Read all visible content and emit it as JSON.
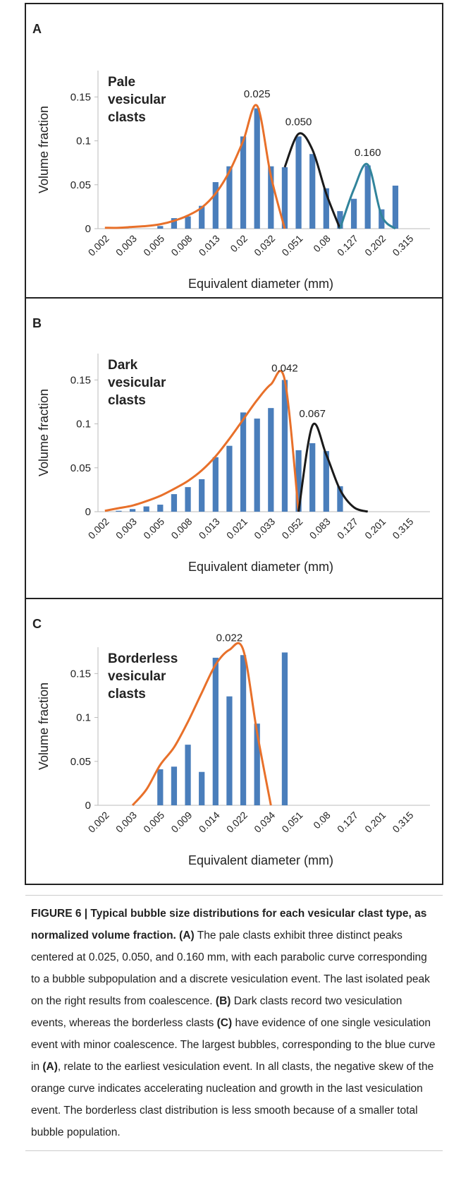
{
  "chart_data": [
    {
      "type": "bar",
      "panel": "A",
      "label_lines": [
        "Pale",
        "vesicular",
        "clasts"
      ],
      "x_label": "Equivalent diameter (mm)",
      "y_label": "Volume fraction",
      "categories": [
        "0.002",
        null,
        "0.003",
        null,
        "0.005",
        null,
        "0.008",
        null,
        "0.013",
        null,
        "0.02",
        null,
        "0.032",
        null,
        "0.051",
        null,
        "0.08",
        null,
        "0.127",
        null,
        "0.202",
        null,
        "0.315",
        null
      ],
      "ylim": [
        0,
        0.18
      ],
      "yticks": [
        0,
        0.05,
        0.1,
        0.15
      ],
      "series": [
        {
          "type": "bar",
          "color": "#4a7ebb",
          "values": [
            0,
            0,
            0,
            0,
            0.003,
            0.012,
            0.014,
            0.026,
            0.053,
            0.071,
            0.105,
            0.137,
            0.071,
            0.07,
            0.105,
            0.085,
            0.046,
            0.02,
            0.034,
            0.072,
            0.022,
            0.049,
            0,
            0
          ]
        },
        {
          "type": "line",
          "color": "#e8702a",
          "peak_label": "0.025",
          "values": [
            0.001,
            0.001,
            0.002,
            0.003,
            0.005,
            0.009,
            0.015,
            0.024,
            0.04,
            0.065,
            0.1,
            0.14,
            0.06,
            0,
            null,
            null,
            null,
            null,
            null,
            null,
            null,
            null,
            null,
            null
          ]
        },
        {
          "type": "line",
          "color": "#1a1a1a",
          "peak_label": "0.050",
          "values": [
            null,
            null,
            null,
            null,
            null,
            null,
            null,
            null,
            null,
            null,
            null,
            null,
            null,
            0.07,
            0.108,
            0.09,
            0.04,
            0,
            null,
            null,
            null,
            null,
            null,
            null
          ]
        },
        {
          "type": "line",
          "color": "#31849b",
          "peak_label": "0.160",
          "values": [
            null,
            null,
            null,
            null,
            null,
            null,
            null,
            null,
            null,
            null,
            null,
            null,
            null,
            null,
            null,
            null,
            null,
            0,
            0.045,
            0.073,
            0.015,
            0,
            null,
            null
          ]
        }
      ]
    },
    {
      "type": "bar",
      "panel": "B",
      "label_lines": [
        "Dark",
        "vesicular",
        "clasts"
      ],
      "x_label": "Equivalent diameter (mm)",
      "y_label": "Volume fraction",
      "categories": [
        "0.002",
        null,
        "0.003",
        null,
        "0.005",
        null,
        "0.008",
        null,
        "0.013",
        null,
        "0.021",
        null,
        "0.033",
        null,
        "0.052",
        null,
        "0.083",
        null,
        "0.127",
        null,
        "0.201",
        null,
        "0.315",
        null
      ],
      "ylim": [
        0,
        0.18
      ],
      "yticks": [
        0,
        0.05,
        0.1,
        0.15
      ],
      "series": [
        {
          "type": "bar",
          "color": "#4a7ebb",
          "values": [
            0,
            0.001,
            0.003,
            0.006,
            0.008,
            0.02,
            0.028,
            0.037,
            0.062,
            0.075,
            0.113,
            0.106,
            0.118,
            0.15,
            0.07,
            0.078,
            0.069,
            0.029,
            0,
            0,
            0,
            0,
            0,
            0
          ]
        },
        {
          "type": "line",
          "color": "#e8702a",
          "peak_label": "0.042",
          "values": [
            0.001,
            0.004,
            0.007,
            0.012,
            0.018,
            0.026,
            0.035,
            0.047,
            0.063,
            0.083,
            0.105,
            0.127,
            0.145,
            0.15,
            0,
            null,
            null,
            null,
            null,
            null,
            null,
            null,
            null,
            null
          ]
        },
        {
          "type": "line",
          "color": "#1a1a1a",
          "peak_label": "0.067",
          "values": [
            null,
            null,
            null,
            null,
            null,
            null,
            null,
            null,
            null,
            null,
            null,
            null,
            null,
            null,
            0,
            0.098,
            0.065,
            0.025,
            0.005,
            0,
            null,
            null,
            null,
            null
          ]
        }
      ]
    },
    {
      "type": "bar",
      "panel": "C",
      "label_lines": [
        "Borderless",
        "vesicular",
        "clasts"
      ],
      "x_label": "Equivalent diameter (mm)",
      "y_label": "Volume fraction",
      "categories": [
        "0.002",
        null,
        "0.003",
        null,
        "0.005",
        null,
        "0.009",
        null,
        "0.014",
        null,
        "0.022",
        null,
        "0.034",
        null,
        "0.051",
        null,
        "0.08",
        null,
        "0.127",
        null,
        "0.201",
        null,
        "0.315",
        null
      ],
      "ylim": [
        0,
        0.18
      ],
      "yticks": [
        0,
        0.05,
        0.1,
        0.15
      ],
      "series": [
        {
          "type": "bar",
          "color": "#4a7ebb",
          "values": [
            0,
            0,
            0,
            0,
            0.041,
            0.044,
            0.069,
            0.038,
            0.168,
            0.124,
            0.171,
            0.093,
            0,
            0.174,
            0,
            0,
            0,
            0,
            0,
            0,
            0,
            0,
            0,
            0
          ]
        },
        {
          "type": "line",
          "color": "#e8702a",
          "peak_label": "0.022",
          "values": [
            null,
            null,
            0,
            0.018,
            0.046,
            0.066,
            0.095,
            0.128,
            0.16,
            0.177,
            0.177,
            0.083,
            0,
            null,
            null,
            null,
            null,
            null,
            null,
            null,
            null,
            null,
            null,
            null
          ]
        }
      ]
    }
  ],
  "caption": [
    {
      "text": "FIGURE 6 | Typical bubble size distributions for each vesicular clast type, as normalized volume fraction.",
      "bold": true
    },
    {
      "text": " "
    },
    {
      "text": "(A)",
      "bold": true
    },
    {
      "text": " The pale clasts exhibit three distinct peaks centered at 0.025, 0.050, and 0.160 mm, with each parabolic curve corresponding to a bubble subpopulation and a discrete vesiculation event. The last isolated peak on the right results from coalescence. "
    },
    {
      "text": "(B)",
      "bold": true
    },
    {
      "text": " Dark clasts record two vesiculation events, whereas the borderless clasts "
    },
    {
      "text": "(C)",
      "bold": true
    },
    {
      "text": " have evidence of one single vesiculation event with minor coalescence. The largest bubbles, corresponding to the blue curve in "
    },
    {
      "text": "(A)",
      "bold": true
    },
    {
      "text": ", relate to the earliest vesiculation event. In all clasts, the negative skew of the orange curve indicates accelerating nucleation and growth in the last vesiculation event. The borderless clast distribution is less smooth because of a smaller total bubble population."
    }
  ]
}
